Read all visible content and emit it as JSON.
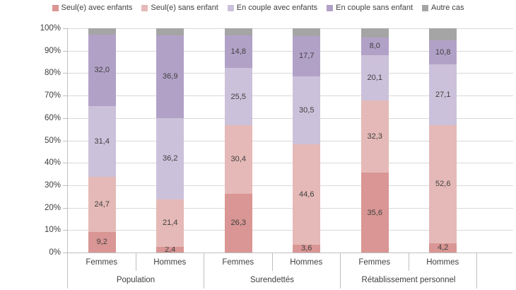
{
  "chart_data": {
    "type": "bar",
    "subtype": "stacked-100-percent",
    "title": "",
    "legend_position": "top",
    "grid": true,
    "x_axis": {
      "groups": [
        {
          "label": "Population",
          "categories": [
            "Femmes",
            "Hommes"
          ]
        },
        {
          "label": "Surendettés",
          "categories": [
            "Femmes",
            "Hommes"
          ]
        },
        {
          "label": "Rétablissement personnel",
          "categories": [
            "Femmes",
            "Hommes"
          ]
        }
      ]
    },
    "y_axis": {
      "min": 0,
      "max": 100,
      "ticks": [
        "0%",
        "10%",
        "20%",
        "30%",
        "40%",
        "50%",
        "60%",
        "70%",
        "80%",
        "90%",
        "100%"
      ]
    },
    "series": [
      {
        "name": "Seul(e) avec enfants",
        "color": "#D99694",
        "show_labels": true,
        "values": [
          9.2,
          2.4,
          26.3,
          3.6,
          35.6,
          4.2
        ]
      },
      {
        "name": "Seul(e) sans enfant",
        "color": "#E5B9B7",
        "show_labels": true,
        "values": [
          24.7,
          21.4,
          30.4,
          44.6,
          32.3,
          52.6
        ]
      },
      {
        "name": "En couple avec enfants",
        "color": "#CCC1DA",
        "show_labels": true,
        "values": [
          31.4,
          36.2,
          25.5,
          30.5,
          20.1,
          27.1
        ]
      },
      {
        "name": "En couple sans enfant",
        "color": "#B2A1C7",
        "show_labels": true,
        "values": [
          32.0,
          36.9,
          14.8,
          17.7,
          8.0,
          10.8
        ]
      },
      {
        "name": "Autre cas",
        "color": "#A5A5A5",
        "show_labels": false,
        "values": [
          2.7,
          3.1,
          3.0,
          3.6,
          4.0,
          5.3
        ]
      }
    ],
    "label_decimal_separator": ",",
    "colors": {
      "gridline": "#D9D9D9",
      "axis_line": "#BFBFBF",
      "text": "#404040",
      "background": "#FFFFFF"
    }
  }
}
